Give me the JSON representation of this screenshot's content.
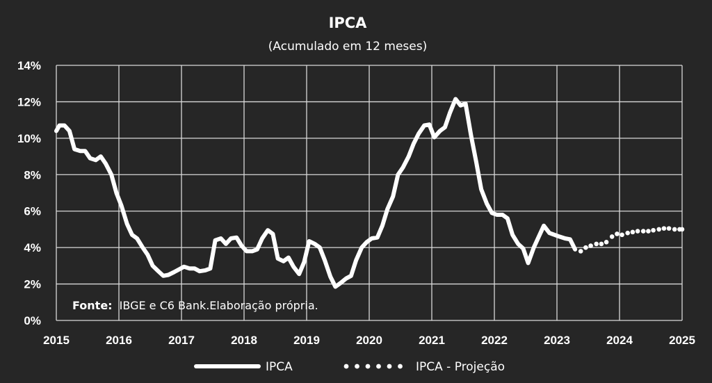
{
  "chart_data": {
    "type": "line",
    "title": "IPCA",
    "subtitle": "(Acumulado em 12 meses)",
    "source_label": "Fonte:",
    "source_text": "IBGE e C6 Bank.Elaboração própria.",
    "x_ticks": [
      "2015",
      "2016",
      "2017",
      "2018",
      "2019",
      "2020",
      "2021",
      "2022",
      "2023",
      "2024",
      "2025"
    ],
    "y_ticks": [
      "0%",
      "2%",
      "4%",
      "6%",
      "8%",
      "10%",
      "12%",
      "14%"
    ],
    "ylim": [
      0,
      14
    ],
    "xlim": [
      2015.0,
      2025.0
    ],
    "grid": true,
    "legend_position": "bottom",
    "line_color": "#ffffff",
    "background_color": "#262626",
    "grid_color": "#d9d9d9",
    "series": [
      {
        "name": "IPCA",
        "style": "solid",
        "points": [
          [
            2015.0,
            10.4
          ],
          [
            2015.05,
            10.7
          ],
          [
            2015.13,
            10.7
          ],
          [
            2015.21,
            10.4
          ],
          [
            2015.29,
            9.4
          ],
          [
            2015.38,
            9.3
          ],
          [
            2015.46,
            9.3
          ],
          [
            2015.54,
            8.9
          ],
          [
            2015.63,
            8.8
          ],
          [
            2015.71,
            9.0
          ],
          [
            2015.79,
            8.6
          ],
          [
            2015.88,
            8.0
          ],
          [
            2015.96,
            7.0
          ],
          [
            2016.04,
            6.3
          ],
          [
            2016.13,
            5.3
          ],
          [
            2016.21,
            4.7
          ],
          [
            2016.29,
            4.5
          ],
          [
            2016.38,
            4.0
          ],
          [
            2016.46,
            3.6
          ],
          [
            2016.54,
            3.0
          ],
          [
            2016.63,
            2.7
          ],
          [
            2016.71,
            2.45
          ],
          [
            2016.79,
            2.5
          ],
          [
            2016.88,
            2.65
          ],
          [
            2016.96,
            2.8
          ],
          [
            2017.04,
            2.95
          ],
          [
            2017.13,
            2.85
          ],
          [
            2017.21,
            2.85
          ],
          [
            2017.29,
            2.7
          ],
          [
            2017.38,
            2.75
          ],
          [
            2017.46,
            2.85
          ],
          [
            2017.54,
            4.4
          ],
          [
            2017.63,
            4.5
          ],
          [
            2017.71,
            4.2
          ],
          [
            2017.79,
            4.5
          ],
          [
            2017.88,
            4.55
          ],
          [
            2017.96,
            4.1
          ],
          [
            2018.04,
            3.8
          ],
          [
            2018.13,
            3.8
          ],
          [
            2018.21,
            3.9
          ],
          [
            2018.29,
            4.5
          ],
          [
            2018.38,
            4.95
          ],
          [
            2018.46,
            4.75
          ],
          [
            2018.54,
            3.4
          ],
          [
            2018.63,
            3.25
          ],
          [
            2018.71,
            3.45
          ],
          [
            2018.79,
            2.95
          ],
          [
            2018.88,
            2.55
          ],
          [
            2018.96,
            3.2
          ],
          [
            2019.04,
            4.35
          ],
          [
            2019.13,
            4.2
          ],
          [
            2019.21,
            4.0
          ],
          [
            2019.29,
            3.3
          ],
          [
            2019.38,
            2.4
          ],
          [
            2019.46,
            1.85
          ],
          [
            2019.54,
            2.05
          ],
          [
            2019.63,
            2.3
          ],
          [
            2019.71,
            2.45
          ],
          [
            2019.79,
            3.3
          ],
          [
            2019.88,
            4.0
          ],
          [
            2019.96,
            4.3
          ],
          [
            2020.04,
            4.5
          ],
          [
            2020.13,
            4.55
          ],
          [
            2020.21,
            5.2
          ],
          [
            2020.29,
            6.1
          ],
          [
            2020.38,
            6.8
          ],
          [
            2020.46,
            8.0
          ],
          [
            2020.54,
            8.4
          ],
          [
            2020.63,
            9.0
          ],
          [
            2020.71,
            9.7
          ],
          [
            2020.79,
            10.25
          ],
          [
            2020.88,
            10.7
          ],
          [
            2020.96,
            10.75
          ],
          [
            2021.04,
            10.05
          ],
          [
            2021.13,
            10.4
          ],
          [
            2021.21,
            10.6
          ],
          [
            2021.29,
            11.4
          ],
          [
            2021.38,
            12.15
          ],
          [
            2021.46,
            11.8
          ],
          [
            2021.54,
            11.9
          ],
          [
            2021.63,
            10.1
          ],
          [
            2021.71,
            8.7
          ],
          [
            2021.79,
            7.2
          ],
          [
            2021.88,
            6.4
          ],
          [
            2021.96,
            5.9
          ],
          [
            2022.04,
            5.8
          ],
          [
            2022.13,
            5.8
          ],
          [
            2022.21,
            5.6
          ],
          [
            2022.29,
            4.7
          ],
          [
            2022.38,
            4.2
          ],
          [
            2022.46,
            3.95
          ],
          [
            2022.54,
            3.15
          ],
          [
            2022.63,
            4.0
          ],
          [
            2022.71,
            4.6
          ],
          [
            2022.79,
            5.2
          ],
          [
            2022.88,
            4.8
          ],
          [
            2022.96,
            4.7
          ],
          [
            2023.04,
            4.6
          ],
          [
            2023.13,
            4.5
          ],
          [
            2023.21,
            4.45
          ],
          [
            2023.29,
            3.9
          ]
        ]
      },
      {
        "name": "IPCA - Projeção",
        "style": "dotted",
        "points": [
          [
            2023.38,
            3.8
          ],
          [
            2023.46,
            4.0
          ],
          [
            2023.54,
            4.1
          ],
          [
            2023.63,
            4.2
          ],
          [
            2023.71,
            4.2
          ],
          [
            2023.79,
            4.3
          ],
          [
            2023.88,
            4.6
          ],
          [
            2023.96,
            4.75
          ],
          [
            2024.04,
            4.7
          ],
          [
            2024.13,
            4.8
          ],
          [
            2024.21,
            4.85
          ],
          [
            2024.29,
            4.9
          ],
          [
            2024.38,
            4.9
          ],
          [
            2024.46,
            4.9
          ],
          [
            2024.54,
            4.95
          ],
          [
            2024.63,
            5.0
          ],
          [
            2024.71,
            5.05
          ],
          [
            2024.79,
            5.05
          ],
          [
            2024.88,
            5.0
          ],
          [
            2024.96,
            5.0
          ],
          [
            2025.0,
            5.0
          ]
        ]
      }
    ]
  }
}
